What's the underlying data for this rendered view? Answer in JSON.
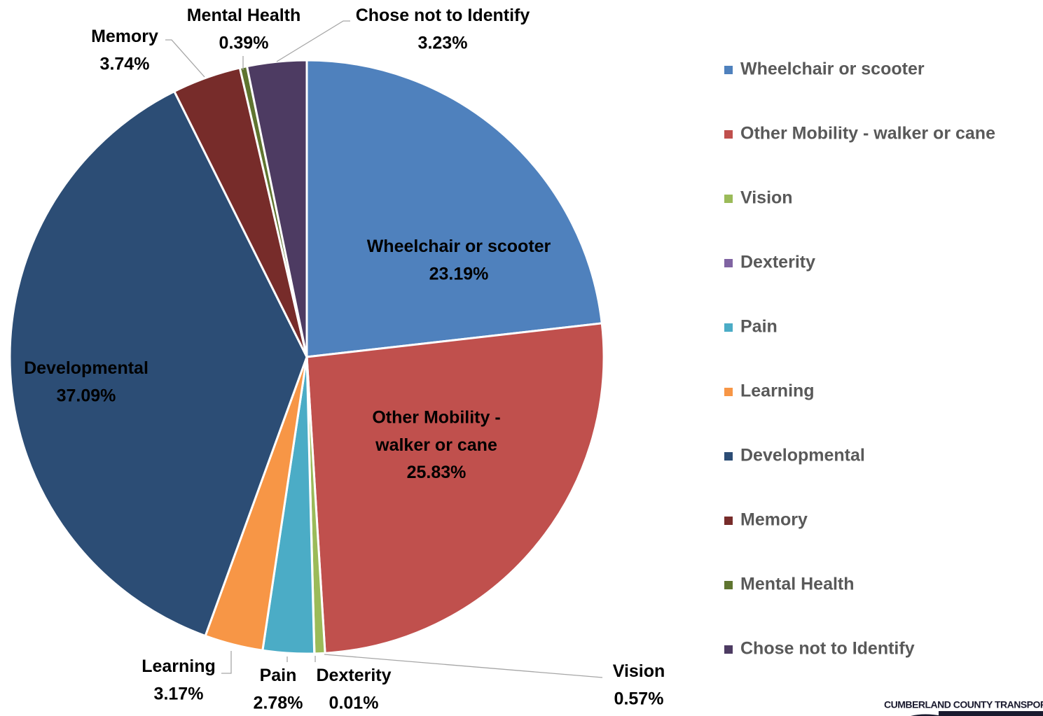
{
  "chart_data": {
    "type": "pie",
    "categories": [
      "Wheelchair or scooter",
      "Other Mobility - walker or cane",
      "Vision",
      "Dexterity",
      "Pain",
      "Learning",
      "Developmental",
      "Memory",
      "Mental Health",
      "Chose not to Identify"
    ],
    "values": [
      23.19,
      25.83,
      0.57,
      0.01,
      2.78,
      3.17,
      37.09,
      3.74,
      0.39,
      3.23
    ],
    "value_labels": [
      "23.19%",
      "25.83%",
      "0.57%",
      "0.01%",
      "2.78%",
      "3.17%",
      "37.09%",
      "3.74%",
      "0.39%",
      "3.23%"
    ],
    "colors": [
      "#4f81bd",
      "#c0504d",
      "#9bbb59",
      "#8064a2",
      "#4bacc6",
      "#f79646",
      "#2c4d75",
      "#772c2a",
      "#5f7530",
      "#4d3b62"
    ],
    "legend": "right"
  },
  "logo_text": "CUMBERLAND COUNTY TRANSPORT"
}
